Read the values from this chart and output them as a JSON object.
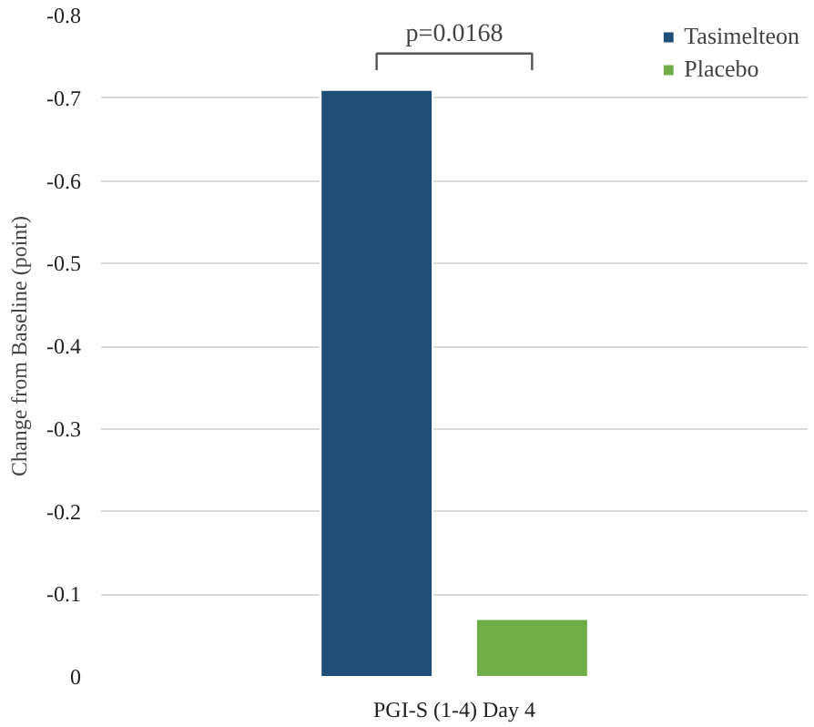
{
  "chart_data": {
    "type": "bar",
    "categories": [
      "PGI-S (1-4) Day 4"
    ],
    "series": [
      {
        "name": "Tasimelteon",
        "color": "#1f4e79",
        "values": [
          -0.71
        ]
      },
      {
        "name": "Placebo",
        "color": "#70ad47",
        "values": [
          -0.07
        ]
      }
    ],
    "ylabel": "Change from Baseline (point)",
    "ylim": [
      0,
      -0.8
    ],
    "yticks": [
      {
        "value": 0,
        "label": "0"
      },
      -0.1,
      -0.2,
      -0.3,
      -0.4,
      -0.5,
      -0.6,
      -0.7,
      -0.8
    ],
    "annotations": [
      "p=0.0168"
    ],
    "grid": "y",
    "legend": "top right"
  }
}
